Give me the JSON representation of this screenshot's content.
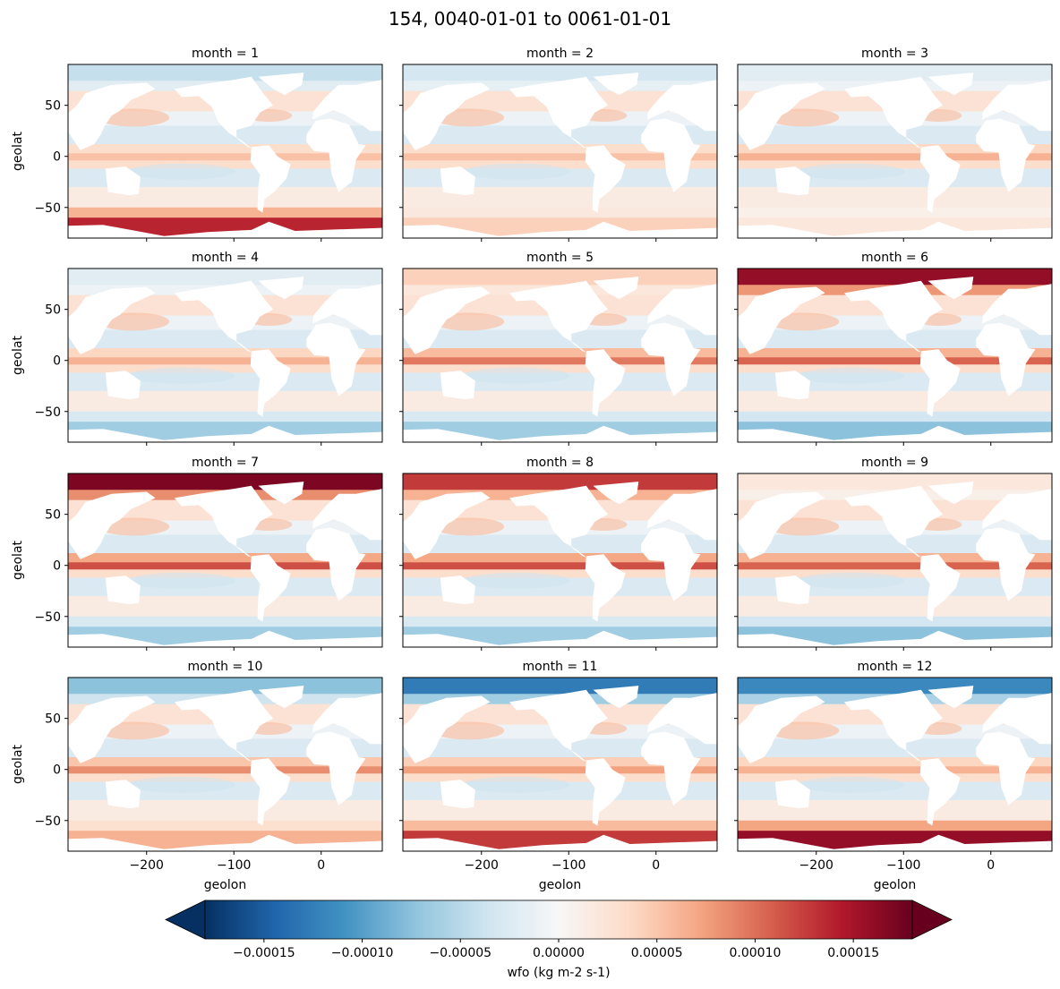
{
  "chart_data": {
    "type": "heatmap",
    "title": "154, 0040-01-01 to 0061-01-01",
    "xlabel": "geolon",
    "ylabel": "geolat",
    "xlim": [
      -290,
      70
    ],
    "ylim": [
      -80,
      90
    ],
    "xticks": [
      -200,
      -100,
      0
    ],
    "xtick_labels": [
      "−200",
      "−100",
      "0"
    ],
    "yticks": [
      50,
      0,
      -50
    ],
    "ytick_labels": [
      "50",
      "0",
      "−50"
    ],
    "grid": false,
    "layout": "4 rows x 3 columns, shared axes",
    "panels": [
      {
        "title": "month = 1",
        "arctic": -0.4,
        "southern": 1.3,
        "equator": 0.5,
        "description": "fresh arctic, strong positive Southern Ocean"
      },
      {
        "title": "month = 2",
        "arctic": -0.3,
        "southern": 0.4,
        "equator": 0.5
      },
      {
        "title": "month = 3",
        "arctic": -0.2,
        "southern": 0.2,
        "equator": 0.6
      },
      {
        "title": "month = 4",
        "arctic": -0.2,
        "southern": -0.6,
        "equator": 0.6
      },
      {
        "title": "month = 5",
        "arctic": 0.4,
        "southern": -0.6,
        "equator": 0.9
      },
      {
        "title": "month = 6",
        "arctic": 1.5,
        "southern": -0.7,
        "equator": 1.0
      },
      {
        "title": "month = 7",
        "arctic": 1.6,
        "southern": -0.6,
        "equator": 1.1
      },
      {
        "title": "month = 8",
        "arctic": 1.2,
        "southern": -0.6,
        "equator": 1.1
      },
      {
        "title": "month = 9",
        "arctic": 0.2,
        "southern": -0.7,
        "equator": 1.0
      },
      {
        "title": "month = 10",
        "arctic": -0.7,
        "southern": 0.6,
        "equator": 0.8
      },
      {
        "title": "month = 11",
        "arctic": -1.2,
        "southern": 1.2,
        "equator": 0.7
      },
      {
        "title": "month = 12",
        "arctic": -1.1,
        "southern": 1.5,
        "equator": 0.6
      }
    ],
    "colorbar": {
      "label": "wfo (kg m-2 s-1)",
      "colormap": "RdBu_r",
      "vmin": -0.00018,
      "vmax": 0.00018,
      "extend": "both",
      "ticks": [
        -0.00015,
        -0.0001,
        -5e-05,
        0,
        5e-05,
        0.0001,
        0.00015
      ],
      "tick_labels": [
        "−0.00015",
        "−0.00010",
        "−0.00005",
        "0.00000",
        "0.00005",
        "0.00010",
        "0.00015"
      ]
    }
  }
}
